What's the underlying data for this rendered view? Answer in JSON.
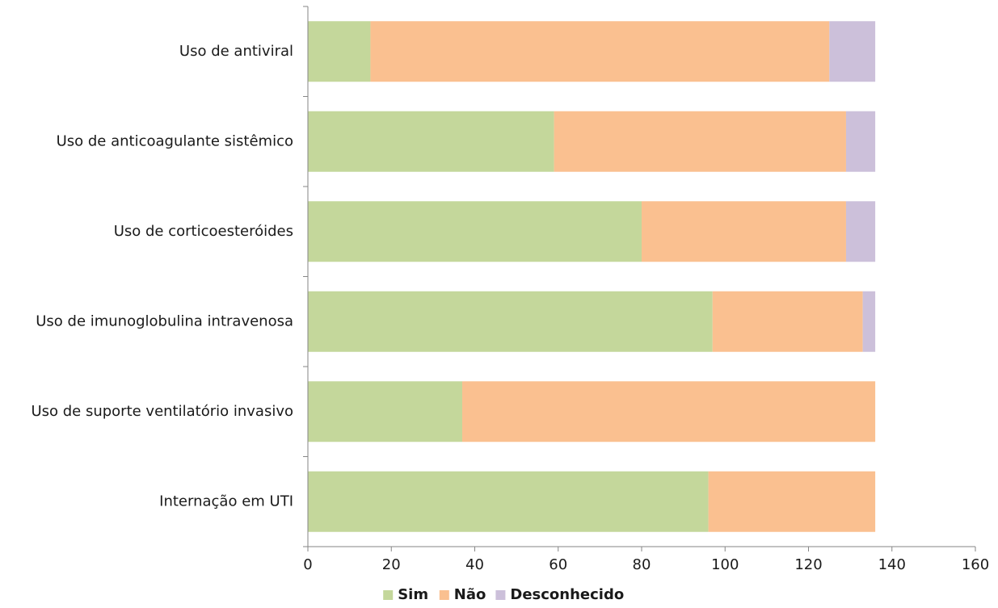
{
  "chart_data": {
    "type": "bar",
    "orientation": "horizontal",
    "stacked": true,
    "categories": [
      "Uso de antiviral",
      "Uso de anticoagulante sistêmico",
      "Uso de corticoesteróides",
      "Uso de imunoglobulina intravenosa",
      "Uso de suporte ventilatório invasivo",
      "Internação em UTI"
    ],
    "series": [
      {
        "name": "Sim",
        "color": "#c4d79b",
        "values": [
          15,
          59,
          80,
          97,
          37,
          96
        ]
      },
      {
        "name": "Não",
        "color": "#fac090",
        "values": [
          110,
          70,
          49,
          36,
          99,
          40
        ]
      },
      {
        "name": "Desconhecido",
        "color": "#ccc0da",
        "values": [
          11,
          7,
          7,
          3,
          0,
          0
        ]
      }
    ],
    "xlim": [
      0,
      160
    ],
    "xticks": [
      0,
      20,
      40,
      60,
      80,
      100,
      120,
      140,
      160
    ],
    "grid": false,
    "legend_position": "bottom",
    "title": "",
    "xlabel": "",
    "ylabel": ""
  }
}
